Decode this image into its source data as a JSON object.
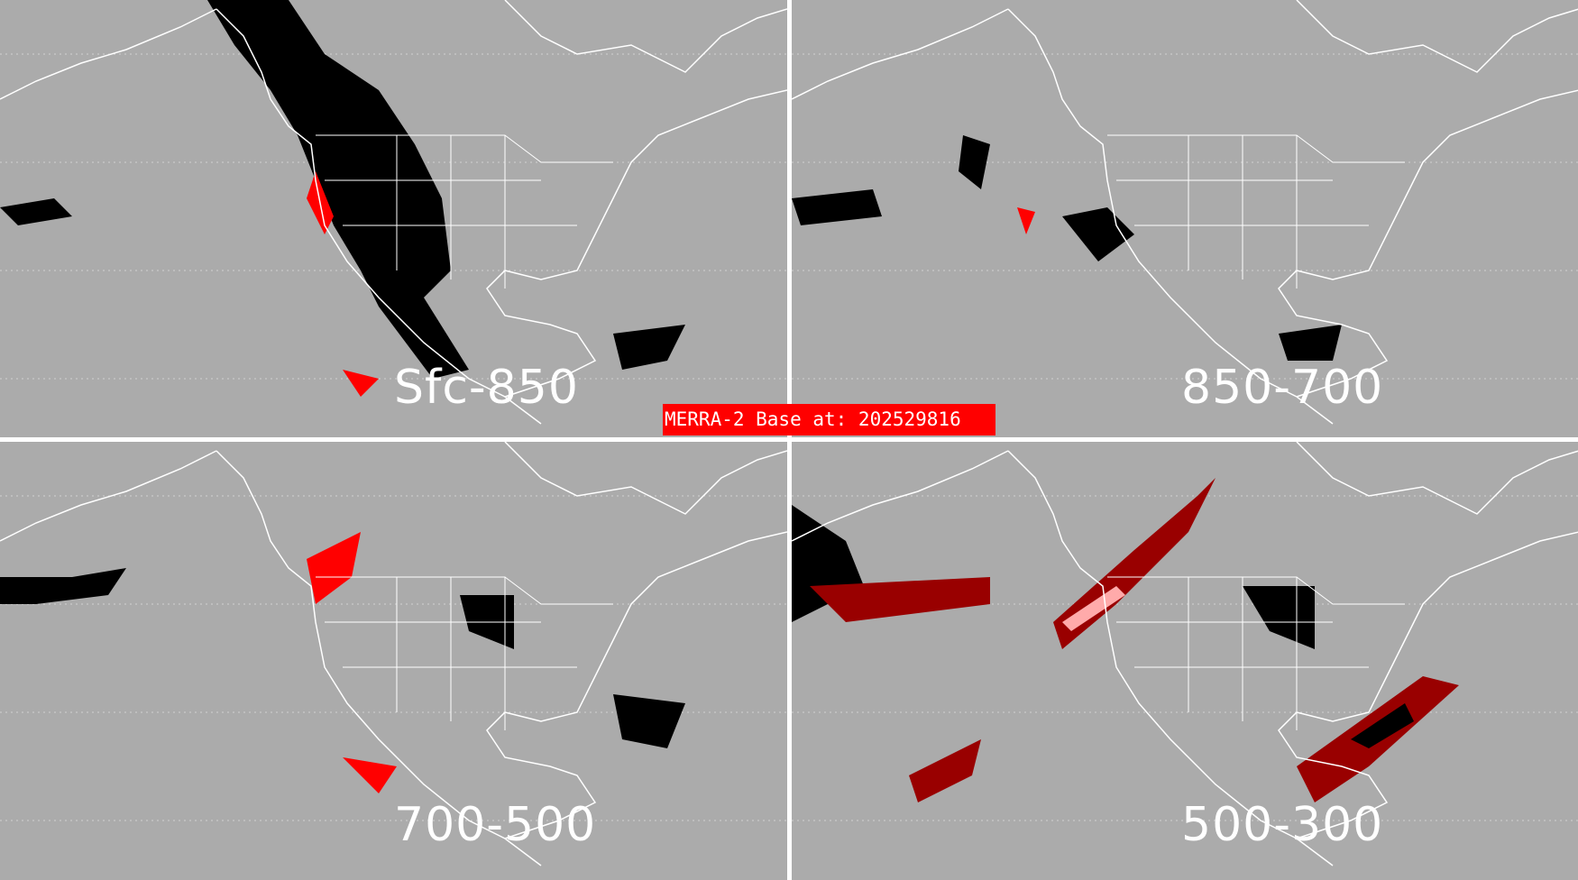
{
  "panels": [
    {
      "label": "Sfc-850"
    },
    {
      "label": "850-700"
    },
    {
      "label": "700-500"
    },
    {
      "label": "500-300"
    }
  ],
  "banner": {
    "text": "MERRA-2 Base at: 202529816"
  },
  "colors": {
    "background": "#ababab",
    "coastline": "#ffffff",
    "field_primary": "#000000",
    "field_secondary": "#ff0000",
    "field_dark_red": "#990000",
    "field_light": "#ffaaaa",
    "banner": "#ff0000"
  }
}
